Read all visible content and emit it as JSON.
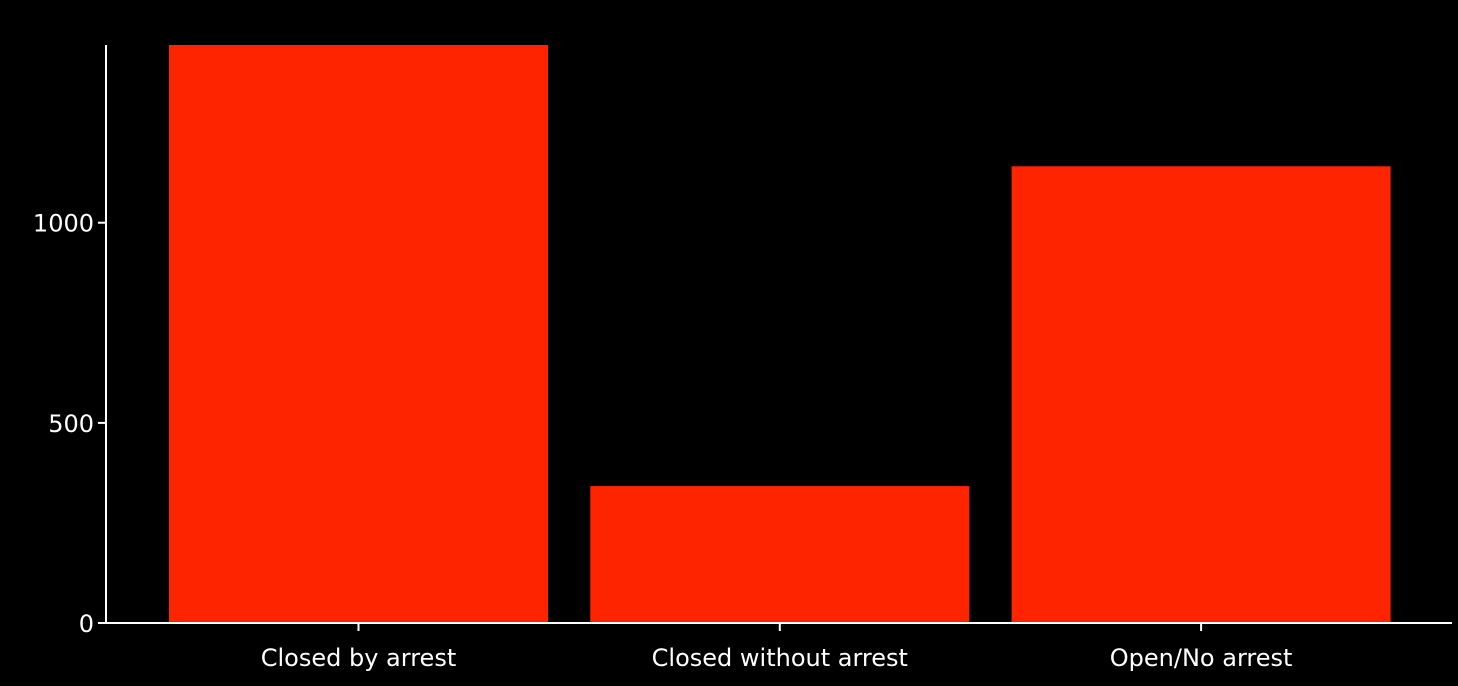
{
  "chart_data": {
    "type": "bar",
    "title": "",
    "xlabel": "",
    "ylabel": "",
    "categories": [
      "Closed by arrest",
      "Closed without arrest",
      "Open/No arrest"
    ],
    "values": [
      1444,
      342,
      1141
    ],
    "ylim": [
      0,
      1444
    ],
    "yticks": [
      0,
      500,
      1000
    ],
    "ytick_labels": [
      "0",
      "500",
      "1000"
    ],
    "grid": false,
    "legend": "none",
    "colors": {
      "bar": "#ff2400",
      "background": "#000000",
      "axis": "#ffffff",
      "text": "#ffffff"
    }
  }
}
